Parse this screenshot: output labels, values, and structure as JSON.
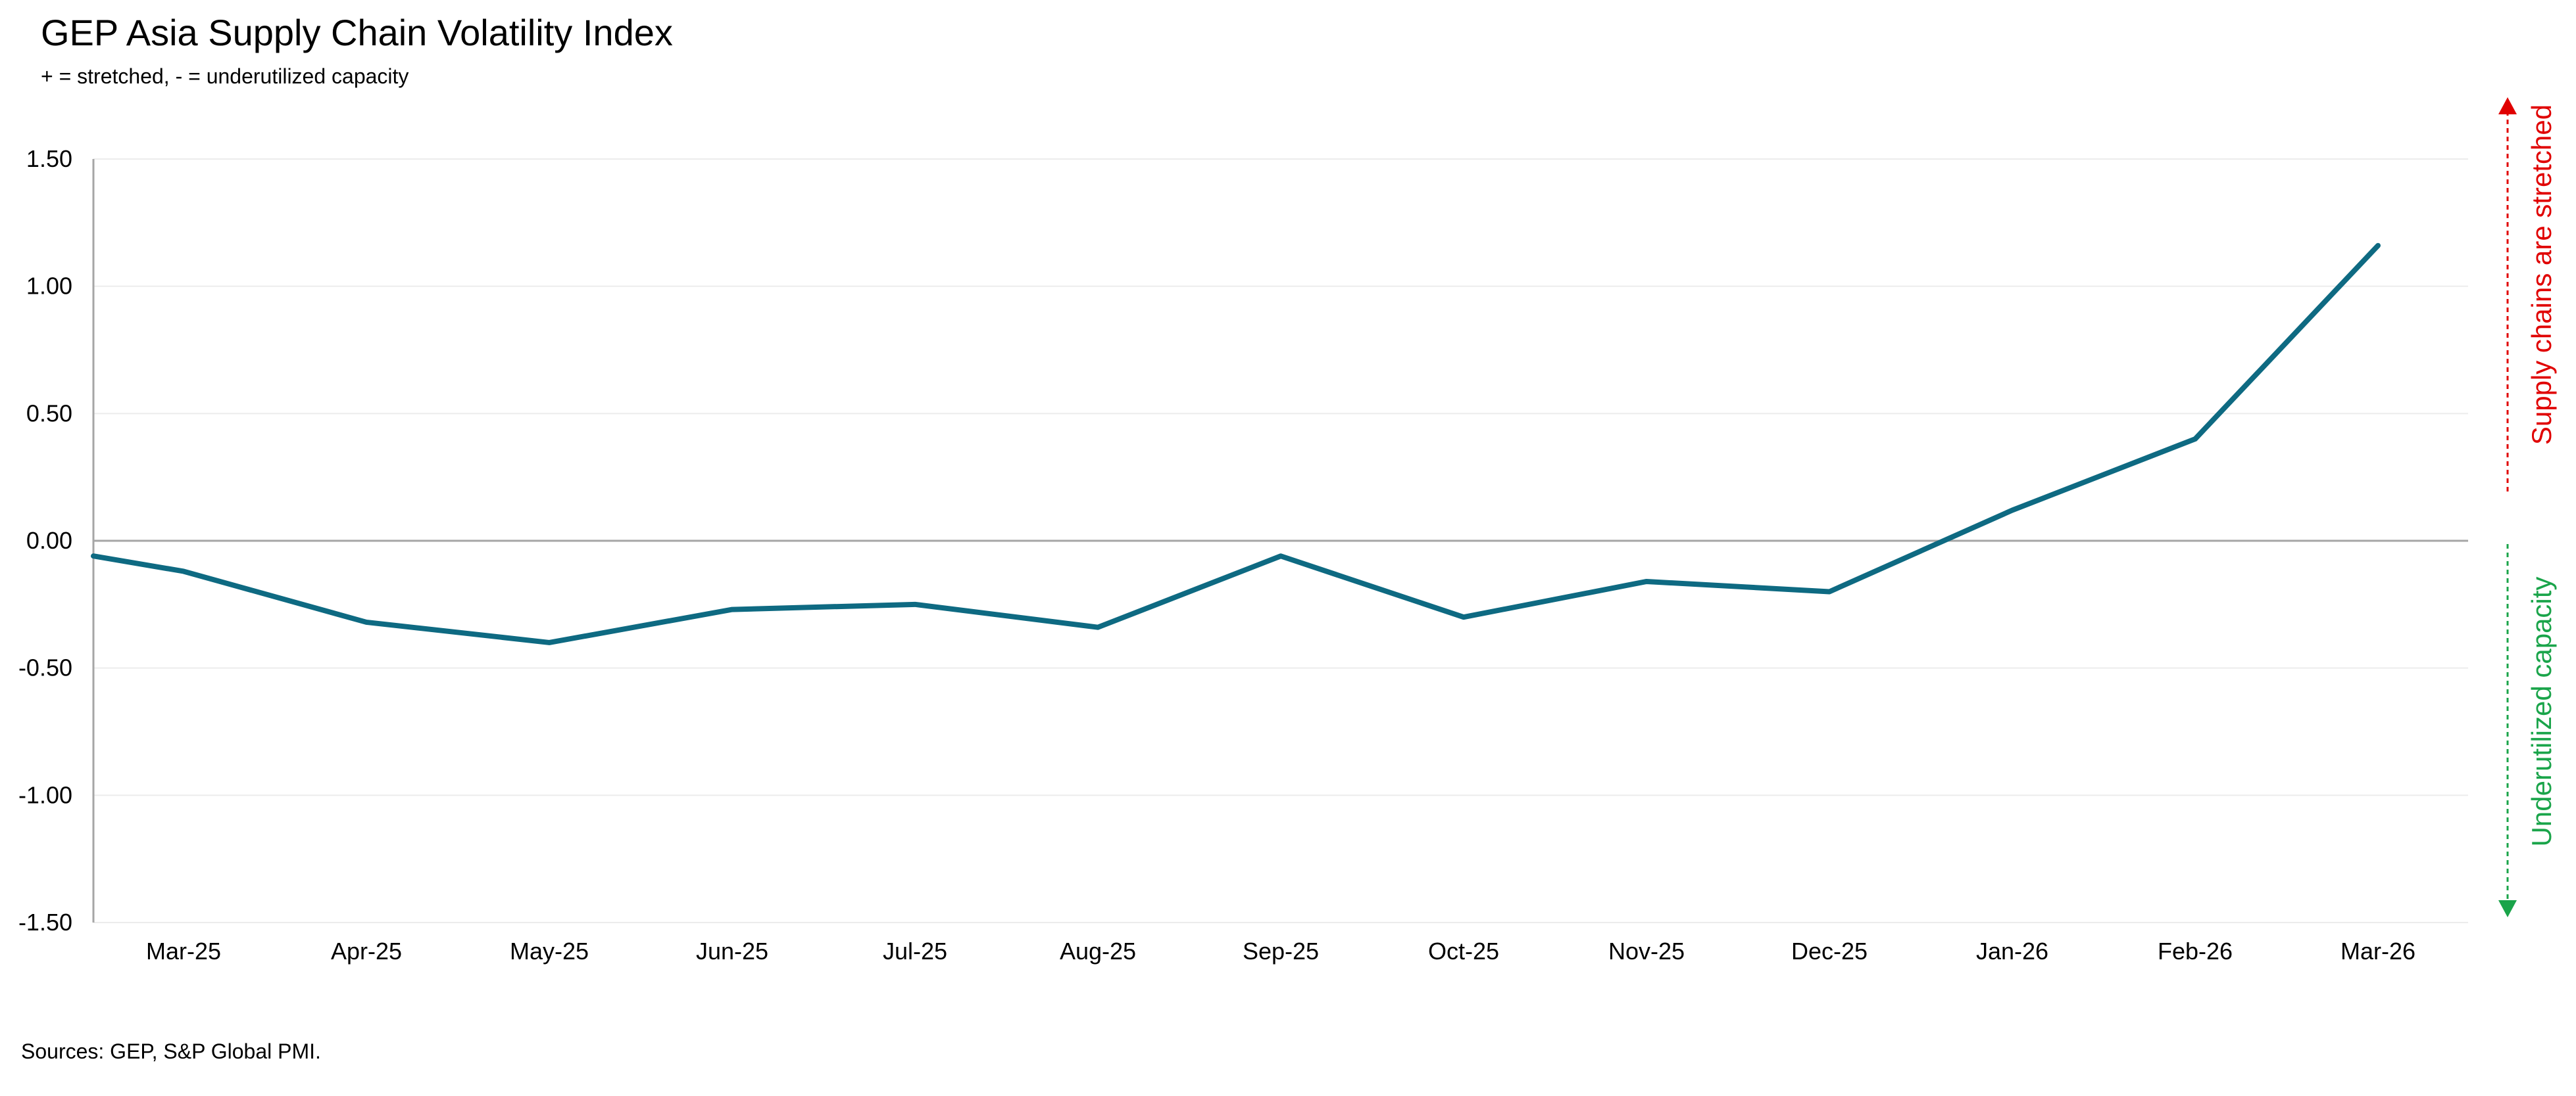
{
  "chart_data": {
    "type": "line",
    "title": "GEP Asia Supply Chain Volatility Index",
    "subtitle": "+ = stretched, - = underutilized capacity",
    "source": "Sources: GEP, S&P Global PMI.",
    "categories": [
      "Mar-25",
      "Apr-25",
      "May-25",
      "Jun-25",
      "Jul-25",
      "Aug-25",
      "Sep-25",
      "Oct-25",
      "Nov-25",
      "Dec-25",
      "Jan-26",
      "Feb-26",
      "Mar-26"
    ],
    "series": [
      {
        "name": "",
        "color": "#0e6a82",
        "start_value": -0.06,
        "values": [
          -0.12,
          -0.32,
          -0.4,
          -0.27,
          -0.25,
          -0.34,
          -0.06,
          -0.3,
          -0.16,
          -0.2,
          0.12,
          0.4,
          1.16
        ]
      }
    ],
    "ylim": [
      -1.5,
      1.5
    ],
    "yticks": [
      1.5,
      1.0,
      0.5,
      0.0,
      -0.5,
      -1.0,
      -1.5
    ],
    "ytick_labels": [
      "1.50",
      "1.00",
      "0.50",
      "0.00",
      "-0.50",
      "-1.00",
      "-1.50"
    ],
    "grid": true,
    "annotations": {
      "upper": {
        "text": "Supply chains are stretched",
        "color": "#e00000"
      },
      "lower": {
        "text": "Underutilized capacity",
        "color": "#1aa44a"
      }
    }
  }
}
